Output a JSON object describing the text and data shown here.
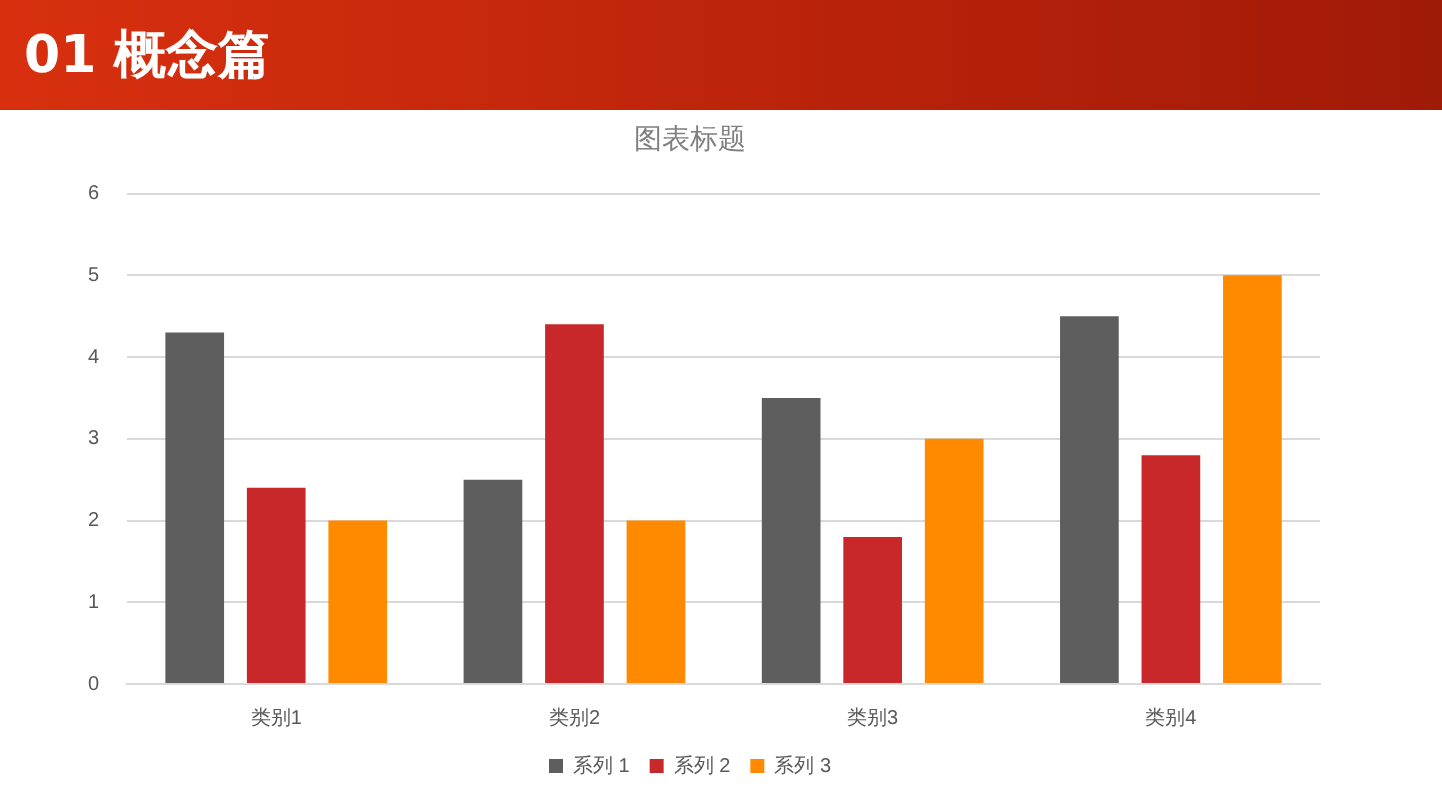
{
  "chart_data": {
    "type": "bar",
    "title": "图表标题",
    "annotations": [
      "01 概念篇"
    ],
    "categories": [
      "类别1",
      "类别2",
      "类别3",
      "类别4"
    ],
    "series": [
      {
        "name": "系列 1",
        "color": "#5e5e5e",
        "values": [
          4.3,
          2.5,
          3.5,
          4.5
        ]
      },
      {
        "name": "系列 2",
        "color": "#c8282a",
        "values": [
          2.4,
          4.4,
          1.8,
          2.8
        ]
      },
      {
        "name": "系列 3",
        "color": "#ff8a00",
        "values": [
          2,
          2,
          3,
          5
        ]
      }
    ],
    "ylim": [
      0,
      6
    ],
    "yticks": [
      0,
      1,
      2,
      3,
      4,
      5,
      6
    ],
    "grid": "y",
    "legend": "bottom"
  }
}
